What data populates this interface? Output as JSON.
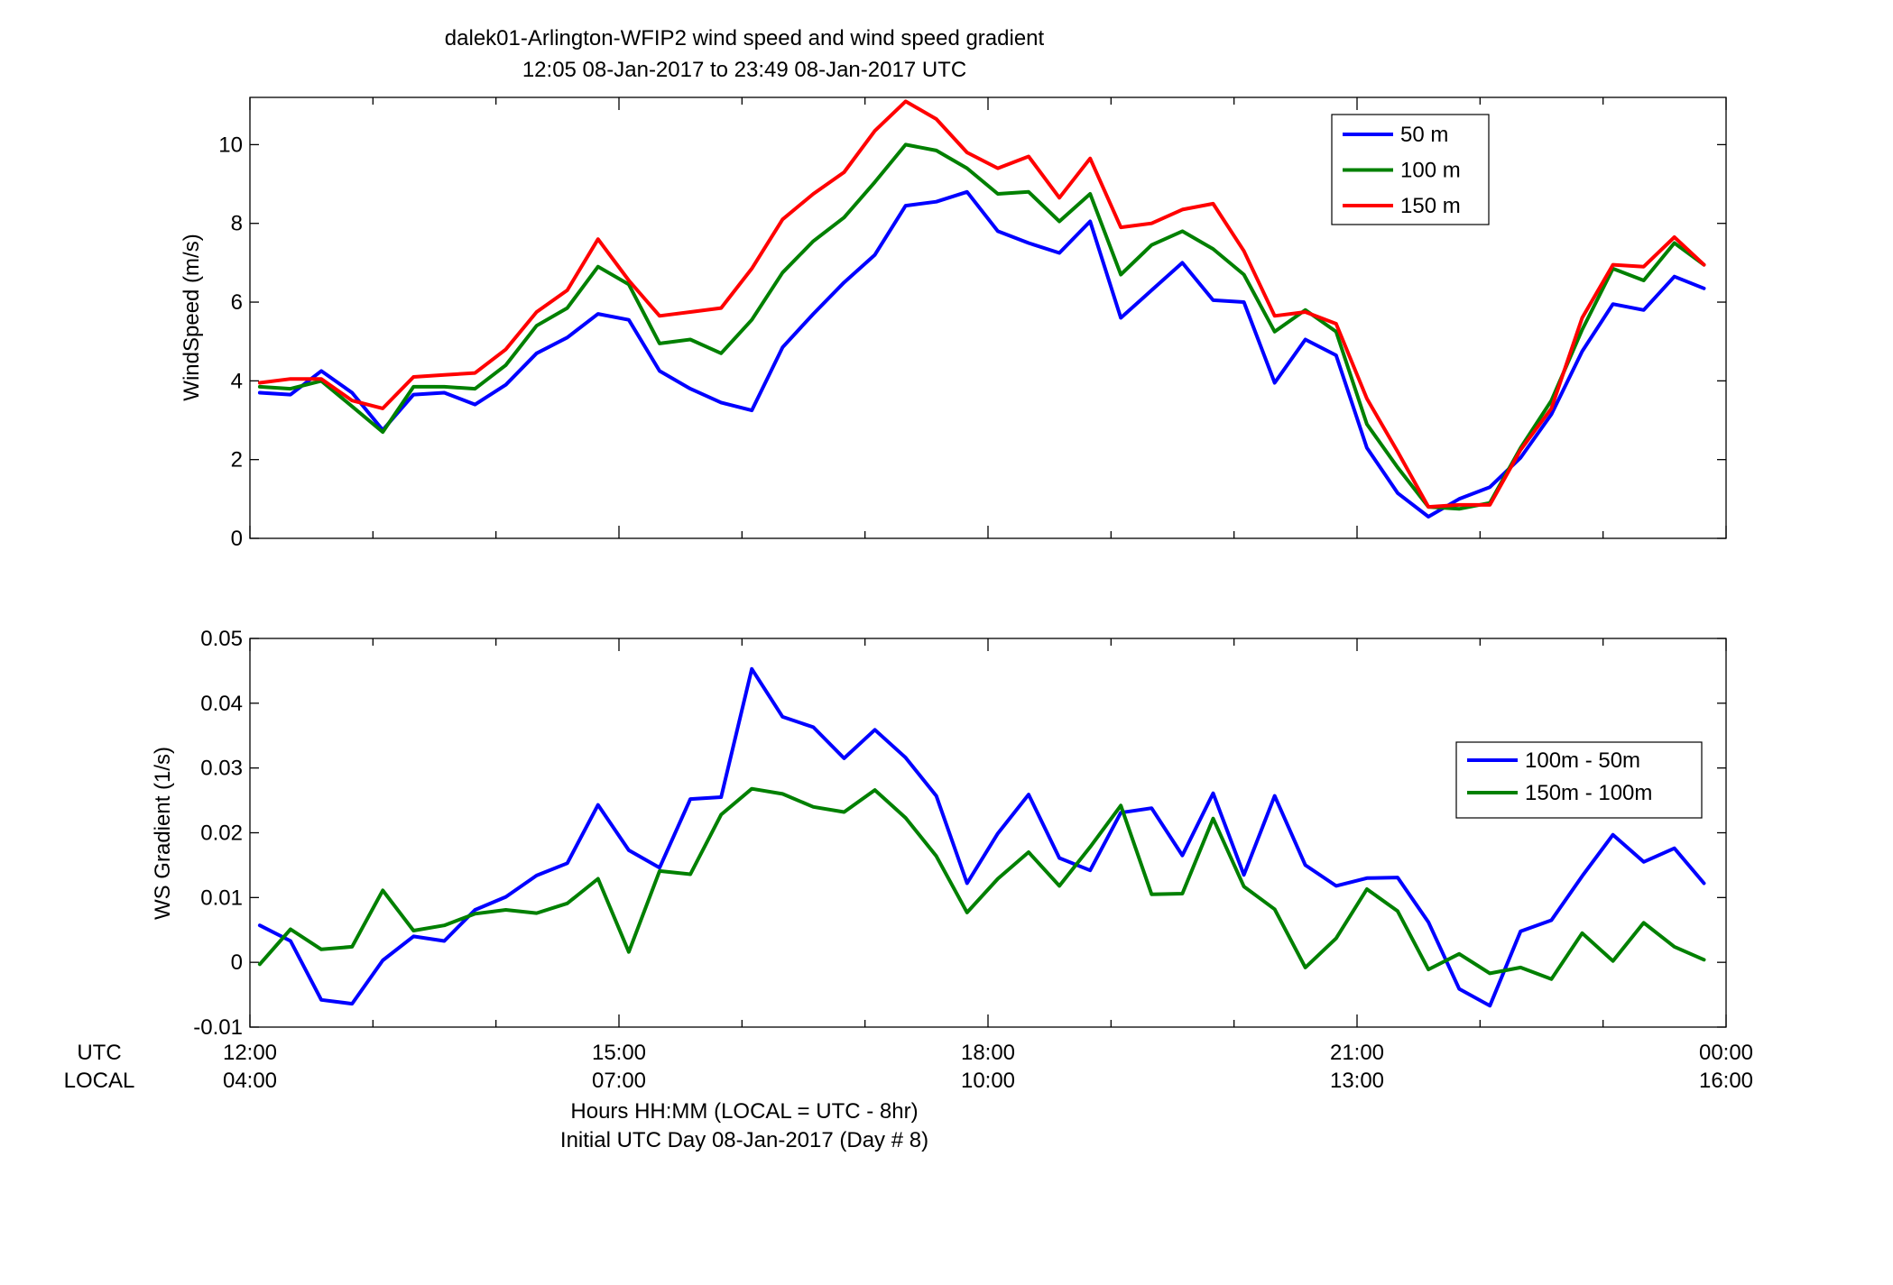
{
  "title_line1": "dalek01-Arlington-WFIP2  wind speed and wind speed gradient",
  "title_line2": "12:05 08-Jan-2017 to 23:49 08-Jan-2017  UTC",
  "row_label_utc": "UTC",
  "row_label_local": "LOCAL",
  "xlabel_line1": "Hours HH:MM  (LOCAL = UTC - 8hr)",
  "xlabel_line2": "Initial UTC Day 08-Jan-2017 (Day # 8)",
  "x_ticks_utc": [
    "12:00",
    "15:00",
    "18:00",
    "21:00",
    "00:00"
  ],
  "x_ticks_local": [
    "04:00",
    "07:00",
    "10:00",
    "13:00",
    "16:00"
  ],
  "chart_data": [
    {
      "type": "line",
      "ylabel": "WindSpeed (m/s)",
      "xlim": [
        12.0,
        24.0
      ],
      "ylim": [
        0,
        11.2
      ],
      "yticks": [
        0,
        2,
        4,
        6,
        8,
        10
      ],
      "ytick_labels": [
        "0",
        "2",
        "4",
        "6",
        "8",
        "10"
      ],
      "grid": false,
      "legend_position": "top-right",
      "x": [
        12.08,
        12.33,
        12.58,
        12.83,
        13.08,
        13.33,
        13.58,
        13.83,
        14.08,
        14.33,
        14.58,
        14.83,
        15.08,
        15.33,
        15.58,
        15.83,
        16.08,
        16.33,
        16.58,
        16.83,
        17.08,
        17.33,
        17.58,
        17.83,
        18.08,
        18.33,
        18.58,
        18.83,
        19.08,
        19.33,
        19.58,
        19.83,
        20.08,
        20.33,
        20.58,
        20.83,
        21.08,
        21.33,
        21.58,
        21.83,
        22.08,
        22.33,
        22.58,
        22.83,
        23.08,
        23.33,
        23.58,
        23.82
      ],
      "series": [
        {
          "name": "50 m",
          "color": "#0000ff",
          "values": [
            3.7,
            3.65,
            4.25,
            3.7,
            2.75,
            3.65,
            3.7,
            3.4,
            3.9,
            4.7,
            5.1,
            5.7,
            5.55,
            4.25,
            3.8,
            3.45,
            3.25,
            4.85,
            5.7,
            6.5,
            7.2,
            8.45,
            8.55,
            8.8,
            7.8,
            7.5,
            7.25,
            8.05,
            5.6,
            6.3,
            7.0,
            6.05,
            6.0,
            3.95,
            5.05,
            4.65,
            2.3,
            1.15,
            0.55,
            1.0,
            1.3,
            2.05,
            3.15,
            4.75,
            5.95,
            5.8,
            6.65,
            6.35
          ]
        },
        {
          "name": "100 m",
          "color": "#008000",
          "values": [
            3.85,
            3.8,
            4.0,
            3.35,
            2.7,
            3.85,
            3.85,
            3.8,
            4.4,
            5.4,
            5.85,
            6.9,
            6.45,
            4.95,
            5.05,
            4.7,
            5.55,
            6.75,
            7.55,
            8.15,
            9.05,
            10.0,
            9.85,
            9.4,
            8.75,
            8.8,
            8.05,
            8.75,
            6.7,
            7.45,
            7.8,
            7.35,
            6.7,
            5.25,
            5.8,
            5.25,
            2.9,
            1.8,
            0.8,
            0.75,
            0.9,
            2.3,
            3.5,
            5.3,
            6.85,
            6.55,
            7.5,
            6.95
          ]
        },
        {
          "name": "150 m",
          "color": "#ff0000",
          "values": [
            3.95,
            4.05,
            4.05,
            3.5,
            3.3,
            4.1,
            4.15,
            4.2,
            4.8,
            5.75,
            6.3,
            7.6,
            6.55,
            5.65,
            5.75,
            5.85,
            6.85,
            8.1,
            8.75,
            9.3,
            10.35,
            11.1,
            10.65,
            9.8,
            9.4,
            9.7,
            8.65,
            9.65,
            7.9,
            8.0,
            8.35,
            8.5,
            7.3,
            5.65,
            5.75,
            5.45,
            3.55,
            2.2,
            0.8,
            0.85,
            0.85,
            2.25,
            3.3,
            5.6,
            6.95,
            6.9,
            7.65,
            6.95
          ]
        }
      ]
    },
    {
      "type": "line",
      "ylabel": "WS Gradient (1/s)",
      "xlim": [
        12.0,
        24.0
      ],
      "ylim": [
        -0.01,
        0.05
      ],
      "yticks": [
        -0.01,
        0,
        0.01,
        0.02,
        0.03,
        0.04,
        0.05
      ],
      "ytick_labels": [
        "-0.01",
        "0",
        "0.01",
        "0.02",
        "0.03",
        "0.04",
        "0.05"
      ],
      "grid": false,
      "legend_position": "right",
      "x": [
        12.08,
        12.33,
        12.58,
        12.83,
        13.08,
        13.33,
        13.58,
        13.83,
        14.08,
        14.33,
        14.58,
        14.83,
        15.08,
        15.33,
        15.58,
        15.83,
        16.08,
        16.33,
        16.58,
        16.83,
        17.08,
        17.33,
        17.58,
        17.83,
        18.08,
        18.33,
        18.58,
        18.83,
        19.08,
        19.33,
        19.58,
        19.83,
        20.08,
        20.33,
        20.58,
        20.83,
        21.08,
        21.33,
        21.58,
        21.83,
        22.08,
        22.33,
        22.58,
        22.83,
        23.08,
        23.33,
        23.58,
        23.82
      ],
      "series": [
        {
          "name": "100m - 50m",
          "color": "#0000ff",
          "values": [
            0.0057,
            0.0033,
            -0.0058,
            -0.0064,
            0.0003,
            0.004,
            0.0033,
            0.0081,
            0.0101,
            0.0134,
            0.0153,
            0.0243,
            0.0173,
            0.0146,
            0.0252,
            0.0255,
            0.0453,
            0.0379,
            0.0363,
            0.0315,
            0.0359,
            0.0316,
            0.0257,
            0.0122,
            0.0199,
            0.0259,
            0.0161,
            0.0142,
            0.0231,
            0.0238,
            0.0165,
            0.0261,
            0.0135,
            0.0257,
            0.015,
            0.0118,
            0.013,
            0.0131,
            0.0062,
            -0.0041,
            -0.0067,
            0.0048,
            0.0065,
            0.0133,
            0.0197,
            0.0155,
            0.0176,
            0.0122
          ]
        },
        {
          "name": "150m - 100m",
          "color": "#008000",
          "values": [
            -0.0003,
            0.0051,
            0.002,
            0.0024,
            0.0111,
            0.0049,
            0.0057,
            0.0075,
            0.0081,
            0.0076,
            0.0091,
            0.0129,
            0.0016,
            0.0141,
            0.0136,
            0.0228,
            0.0268,
            0.026,
            0.024,
            0.0232,
            0.0266,
            0.0223,
            0.0164,
            0.0077,
            0.0129,
            0.017,
            0.0118,
            0.0178,
            0.0242,
            0.0105,
            0.0106,
            0.0222,
            0.0117,
            0.0082,
            -0.0008,
            0.0037,
            0.0113,
            0.0079,
            -0.0011,
            0.0013,
            -0.0017,
            -0.0008,
            -0.0026,
            0.0045,
            0.0002,
            0.0061,
            0.0024,
            0.0004
          ]
        }
      ]
    }
  ]
}
